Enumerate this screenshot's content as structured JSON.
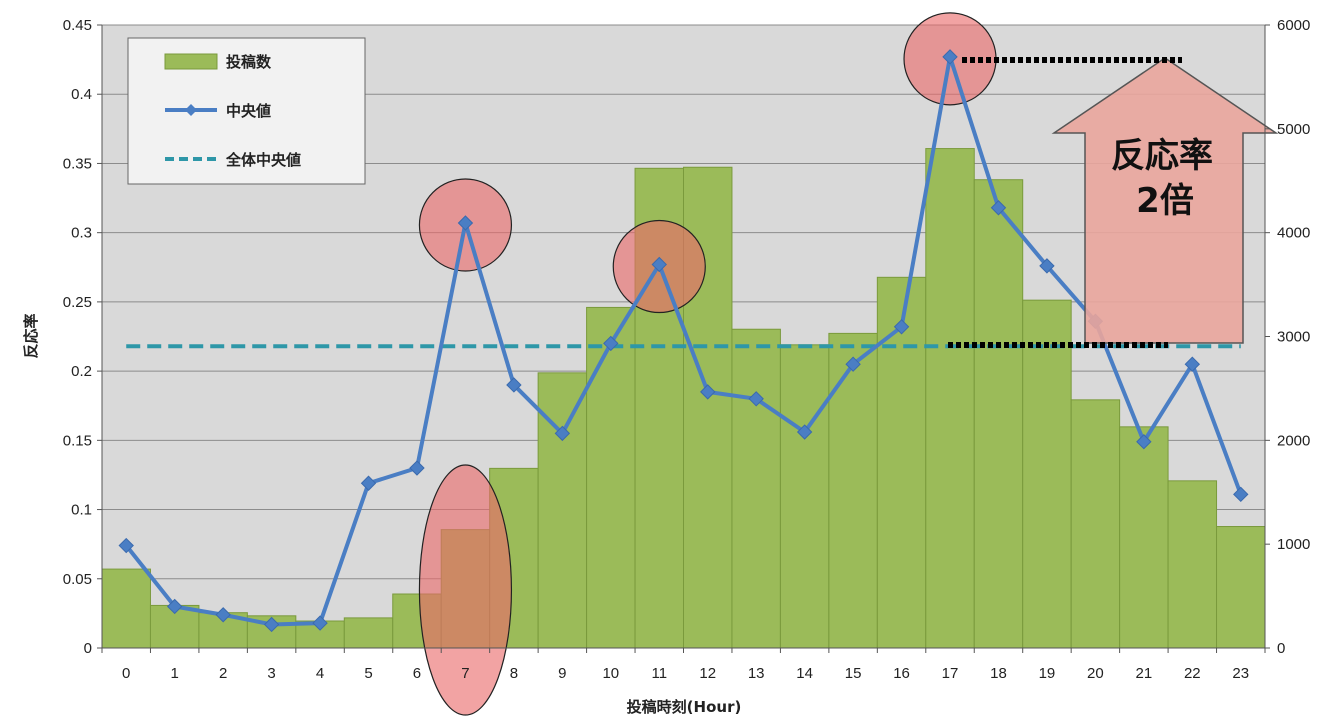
{
  "chart_data": {
    "type": "bar",
    "categories": [
      "0",
      "1",
      "2",
      "3",
      "4",
      "5",
      "6",
      "7",
      "8",
      "9",
      "10",
      "11",
      "12",
      "13",
      "14",
      "15",
      "16",
      "17",
      "18",
      "19",
      "20",
      "21",
      "22",
      "23"
    ],
    "series": [
      {
        "name": "投稿数",
        "type": "bar",
        "axis": "right",
        "values": [
          760,
          410,
          340,
          310,
          260,
          290,
          520,
          1140,
          1730,
          2650,
          3280,
          4620,
          4630,
          3070,
          2920,
          3030,
          3570,
          4810,
          4510,
          3350,
          2390,
          2130,
          1610,
          1170
        ]
      },
      {
        "name": "中央値",
        "type": "line",
        "axis": "left",
        "color": "#4a7ec4",
        "values": [
          0.074,
          0.03,
          0.024,
          0.017,
          0.018,
          0.119,
          0.13,
          0.307,
          0.19,
          0.155,
          0.22,
          0.277,
          0.185,
          0.18,
          0.156,
          0.205,
          0.232,
          0.427,
          0.318,
          0.276,
          0.236,
          0.149,
          0.205,
          0.111
        ]
      },
      {
        "name": "全体中央値",
        "type": "dashed-line",
        "axis": "left",
        "color": "#2e97a8",
        "values": [
          0.218,
          0.218,
          0.218,
          0.218,
          0.218,
          0.218,
          0.218,
          0.218,
          0.218,
          0.218,
          0.218,
          0.218,
          0.218,
          0.218,
          0.218,
          0.218,
          0.218,
          0.218,
          0.218,
          0.218,
          0.218,
          0.218,
          0.218,
          0.218
        ]
      }
    ],
    "xlabel": "投稿時刻(Hour)",
    "ylabel": "反応率",
    "ylim": [
      0,
      0.45
    ],
    "y_ticks": [
      "0",
      "0.05",
      "0.1",
      "0.15",
      "0.2",
      "0.25",
      "0.3",
      "0.35",
      "0.4",
      "0.45"
    ],
    "y2lim": [
      0,
      6000
    ],
    "y2_ticks": [
      "0",
      "1000",
      "2000",
      "3000",
      "4000",
      "5000",
      "6000"
    ],
    "grid": true,
    "legend_position": "top-left",
    "colors": {
      "bar": "#9bbb59",
      "bar_border": "#7a9a3c",
      "plot_bg": "#d9d9d9",
      "highlight": "#ea6b6b",
      "arrow": "#e9a59c"
    },
    "annotations": {
      "arrow_label_line1": "反応率",
      "arrow_label_line2": "2倍",
      "highlighted_hours": [
        "7",
        "11",
        "17"
      ]
    }
  }
}
